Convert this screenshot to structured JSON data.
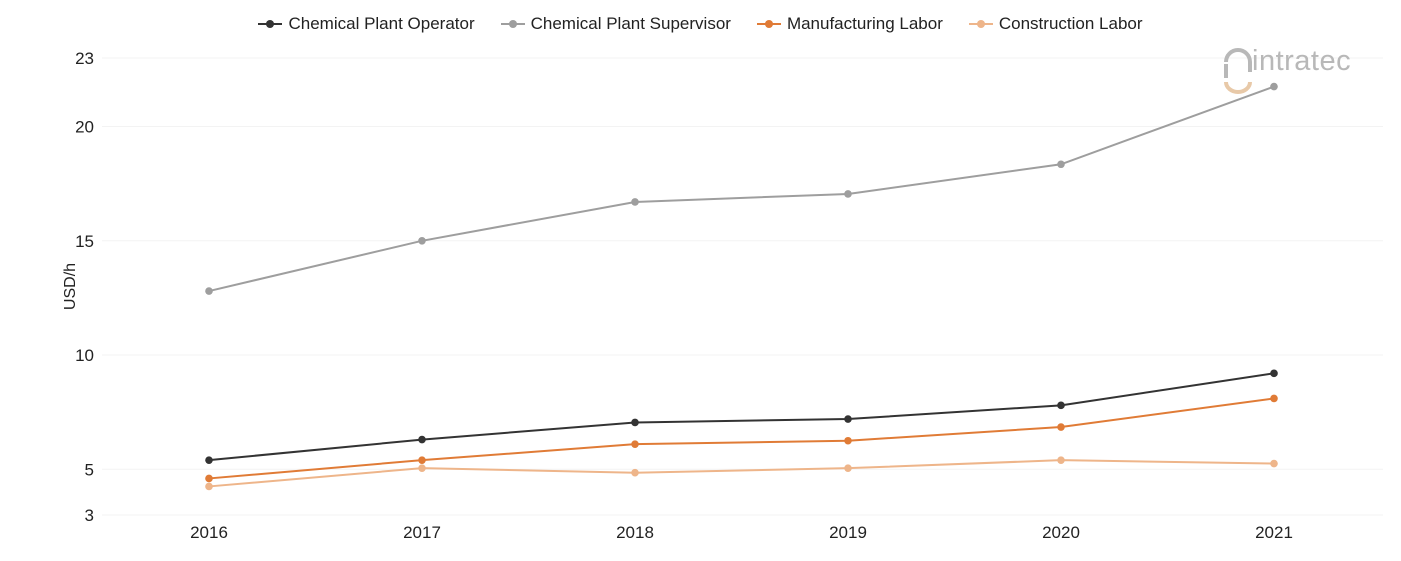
{
  "chart_data": {
    "type": "line",
    "title": "",
    "xlabel": "",
    "ylabel": "USD/h",
    "x": [
      "2016",
      "2017",
      "2018",
      "2019",
      "2020",
      "2021"
    ],
    "y_ticks": [
      3,
      5,
      10,
      15,
      20,
      23
    ],
    "ylim": [
      3,
      23
    ],
    "grid": true,
    "legend_position": "top-center",
    "series": [
      {
        "name": "Chemical Plant Operator",
        "color": "#333333",
        "values": [
          5.4,
          6.3,
          7.05,
          7.2,
          7.8,
          9.2
        ]
      },
      {
        "name": "Chemical Plant Supervisor",
        "color": "#9e9e9e",
        "values": [
          12.8,
          15.0,
          16.7,
          17.05,
          18.35,
          21.75
        ]
      },
      {
        "name": "Manufacturing Labor",
        "color": "#e07b36",
        "values": [
          4.6,
          5.4,
          6.1,
          6.25,
          6.85,
          8.1
        ]
      },
      {
        "name": "Construction Labor",
        "color": "#eeb58a",
        "values": [
          4.25,
          5.05,
          4.85,
          5.05,
          5.4,
          5.25
        ]
      }
    ]
  },
  "logo": {
    "text": "intratec"
  }
}
